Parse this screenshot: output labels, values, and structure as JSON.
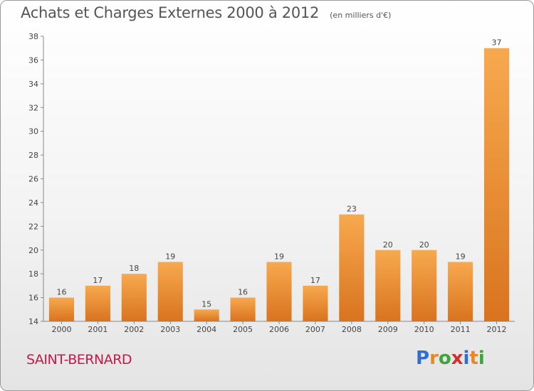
{
  "header": {
    "title": "Achats et Charges Externes 2000 à 2012",
    "unit": "(en milliers d'€)"
  },
  "footer": {
    "commune": "SAINT-BERNARD",
    "logo_letters": [
      "P",
      "r",
      "o",
      "x",
      "i",
      "t",
      "i"
    ],
    "logo_colors": [
      "#2f6fd0",
      "#e8862b",
      "#3aa63a",
      "#d62e2e",
      "#2f6fd0",
      "#e8862b",
      "#3aa63a"
    ]
  },
  "colors": {
    "bar_light": "#f7a94f",
    "bar_dark": "#d9731f",
    "commune": "#c8174a"
  },
  "chart_data": {
    "type": "bar",
    "categories": [
      "2000",
      "2001",
      "2002",
      "2003",
      "2004",
      "2005",
      "2006",
      "2007",
      "2008",
      "2009",
      "2010",
      "2011",
      "2012"
    ],
    "values": [
      16,
      17,
      18,
      19,
      15,
      16,
      19,
      17,
      23,
      20,
      20,
      19,
      37
    ],
    "ylim": [
      14,
      38
    ],
    "yticks": [
      14,
      16,
      18,
      20,
      22,
      24,
      26,
      28,
      30,
      32,
      34,
      36,
      38
    ],
    "grid": false
  }
}
